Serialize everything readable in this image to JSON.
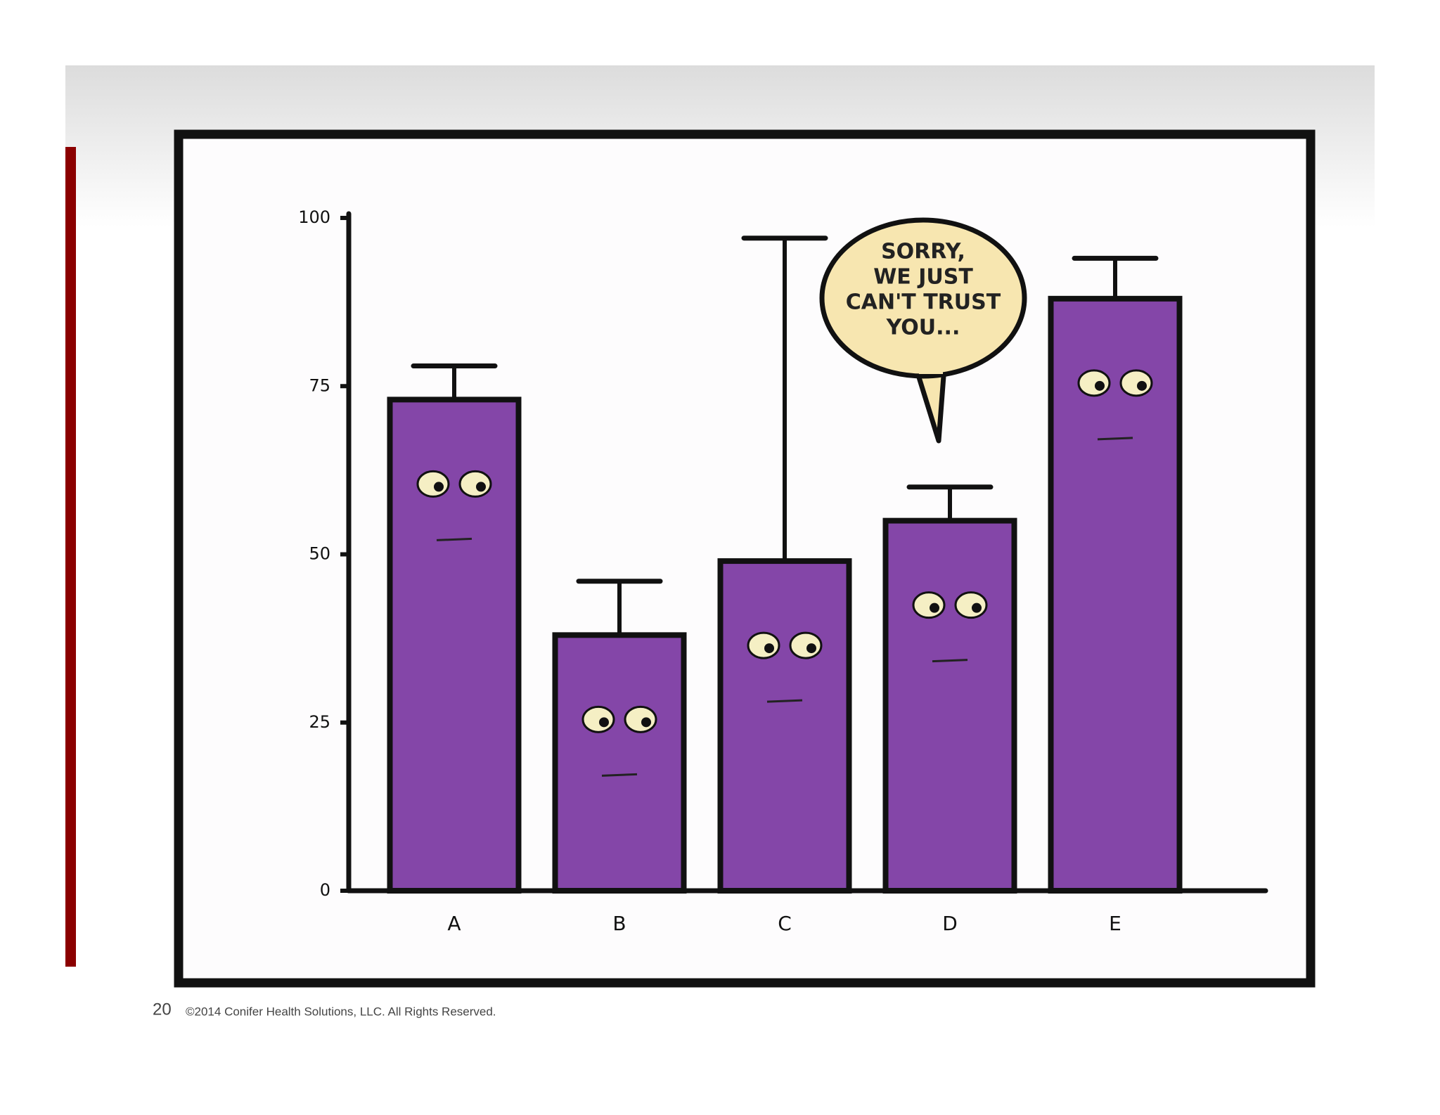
{
  "chart_data": {
    "type": "bar",
    "categories": [
      "A",
      "B",
      "C",
      "D",
      "E"
    ],
    "values": [
      73,
      38,
      49,
      55,
      88
    ],
    "errors": [
      5,
      8,
      48,
      5,
      6
    ],
    "color": "#8446a8",
    "ylim": [
      0,
      100
    ],
    "yticks": [
      0,
      25,
      50,
      75,
      100
    ],
    "annotation": [
      "SORRY,",
      "WE JUST",
      "CAN'T TRUST",
      "YOU..."
    ]
  },
  "footer": {
    "page_number": 20,
    "copyright": "©2014 Conifer Health Solutions, LLC. All Rights Reserved."
  }
}
